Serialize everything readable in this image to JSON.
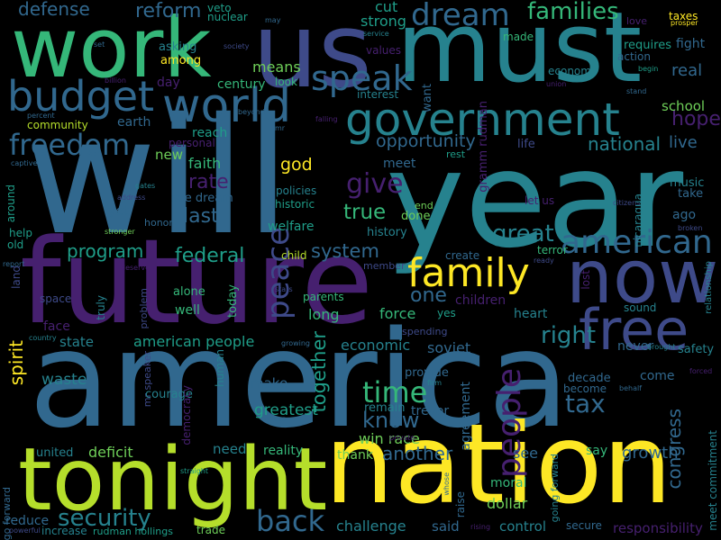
{
  "palette": {
    "background": "#000000",
    "purple": "#46206f",
    "indigo": "#3e4a89",
    "blue": "#31688e",
    "teal": "#26828e",
    "green": "#1f9e89",
    "lightgreen": "#35b779",
    "lime": "#6ece58",
    "yellowgreen": "#b5de2b",
    "yellow": "#fde725"
  },
  "words": [
    {
      "text": "america",
      "color": "blue"
    },
    {
      "text": "will",
      "color": "blue"
    },
    {
      "text": "year",
      "color": "teal"
    },
    {
      "text": "future",
      "color": "purple"
    },
    {
      "text": "nation",
      "color": "yellow"
    },
    {
      "text": "must",
      "color": "teal"
    },
    {
      "text": "us",
      "color": "indigo"
    },
    {
      "text": "work",
      "color": "lightgreen"
    },
    {
      "text": "tonight",
      "color": "yellowgreen"
    },
    {
      "text": "now",
      "color": "indigo"
    },
    {
      "text": "free",
      "color": "indigo"
    },
    {
      "text": "government",
      "color": "teal"
    },
    {
      "text": "world",
      "color": "blue"
    },
    {
      "text": "budget",
      "color": "blue"
    },
    {
      "text": "family",
      "color": "yellow"
    },
    {
      "text": "american",
      "color": "blue"
    },
    {
      "text": "peace",
      "color": "indigo"
    },
    {
      "text": "people",
      "color": "purple"
    },
    {
      "text": "freedom",
      "color": "blue"
    },
    {
      "text": "speak",
      "color": "blue"
    },
    {
      "text": "dream",
      "color": "blue"
    },
    {
      "text": "families",
      "color": "lightgreen"
    },
    {
      "text": "reform",
      "color": "blue"
    },
    {
      "text": "defense",
      "color": "blue"
    },
    {
      "text": "veto",
      "color": "green"
    },
    {
      "text": "nuclear",
      "color": "green"
    },
    {
      "text": "strong",
      "color": "green"
    },
    {
      "text": "cut",
      "color": "green"
    },
    {
      "text": "gramm rudman",
      "color": "purple"
    },
    {
      "text": "taxes",
      "color": "yellow"
    },
    {
      "text": "prosper",
      "color": "yellow"
    },
    {
      "text": "made",
      "color": "lightgreen"
    },
    {
      "text": "fight",
      "color": "blue"
    },
    {
      "text": "requires",
      "color": "green"
    },
    {
      "text": "action",
      "color": "blue"
    },
    {
      "text": "love",
      "color": "purple"
    },
    {
      "text": "asking",
      "color": "teal"
    },
    {
      "text": "among",
      "color": "yellow"
    },
    {
      "text": "may",
      "color": "blue"
    },
    {
      "text": "set",
      "color": "blue"
    },
    {
      "text": "society",
      "color": "indigo"
    },
    {
      "text": "service",
      "color": "teal"
    },
    {
      "text": "values",
      "color": "purple"
    },
    {
      "text": "economy",
      "color": "teal"
    },
    {
      "text": "begin",
      "color": "green"
    },
    {
      "text": "real",
      "color": "blue"
    },
    {
      "text": "union",
      "color": "purple"
    },
    {
      "text": "want",
      "color": "blue"
    },
    {
      "text": "interest",
      "color": "teal"
    },
    {
      "text": "look",
      "color": "lightgreen"
    },
    {
      "text": "means",
      "color": "lime"
    },
    {
      "text": "century",
      "color": "lightgreen"
    },
    {
      "text": "day",
      "color": "purple"
    },
    {
      "text": "billion",
      "color": "purple"
    },
    {
      "text": "stand",
      "color": "blue"
    },
    {
      "text": "hope",
      "color": "purple"
    },
    {
      "text": "school",
      "color": "lime"
    },
    {
      "text": "live",
      "color": "blue"
    },
    {
      "text": "national",
      "color": "teal"
    },
    {
      "text": "opportunity",
      "color": "blue"
    },
    {
      "text": "life",
      "color": "indigo"
    },
    {
      "text": "rest",
      "color": "green"
    },
    {
      "text": "beyond",
      "color": "blue"
    },
    {
      "text": "falling",
      "color": "purple"
    },
    {
      "text": "percent",
      "color": "blue"
    },
    {
      "text": "community",
      "color": "yellowgreen"
    },
    {
      "text": "earth",
      "color": "blue"
    },
    {
      "text": "reach",
      "color": "green"
    },
    {
      "text": "personal",
      "color": "purple"
    },
    {
      "text": "mr",
      "color": "blue"
    },
    {
      "text": "new",
      "color": "lime"
    },
    {
      "text": "faith",
      "color": "lightgreen"
    },
    {
      "text": "god",
      "color": "yellow"
    },
    {
      "text": "meet",
      "color": "blue"
    },
    {
      "text": "give",
      "color": "purple"
    },
    {
      "text": "rate",
      "color": "purple"
    },
    {
      "text": "music",
      "color": "teal"
    },
    {
      "text": "take",
      "color": "blue"
    },
    {
      "text": "captive",
      "color": "blue"
    },
    {
      "text": "gates",
      "color": "teal"
    },
    {
      "text": "address",
      "color": "indigo"
    },
    {
      "text": "see dream",
      "color": "blue"
    },
    {
      "text": "policies",
      "color": "teal"
    },
    {
      "text": "historic",
      "color": "green"
    },
    {
      "text": "end",
      "color": "lime"
    },
    {
      "text": "let us",
      "color": "purple"
    },
    {
      "text": "citizens",
      "color": "indigo"
    },
    {
      "text": "ago",
      "color": "blue"
    },
    {
      "text": "around",
      "color": "green"
    },
    {
      "text": "yet",
      "color": "blue"
    },
    {
      "text": "last",
      "color": "blue"
    },
    {
      "text": "true",
      "color": "lightgreen"
    },
    {
      "text": "done",
      "color": "lime"
    },
    {
      "text": "nicaragua",
      "color": "teal"
    },
    {
      "text": "broken",
      "color": "indigo"
    },
    {
      "text": "help",
      "color": "green"
    },
    {
      "text": "honor",
      "color": "blue"
    },
    {
      "text": "stronger",
      "color": "lime"
    },
    {
      "text": "welfare",
      "color": "green"
    },
    {
      "text": "history",
      "color": "teal"
    },
    {
      "text": "great",
      "color": "teal"
    },
    {
      "text": "old",
      "color": "green"
    },
    {
      "text": "program",
      "color": "green"
    },
    {
      "text": "federal",
      "color": "green"
    },
    {
      "text": "child",
      "color": "yellowgreen"
    },
    {
      "text": "system",
      "color": "blue"
    },
    {
      "text": "terror",
      "color": "lightgreen"
    },
    {
      "text": "create",
      "color": "blue"
    },
    {
      "text": "ready",
      "color": "indigo"
    },
    {
      "text": "report",
      "color": "blue"
    },
    {
      "text": "deserve",
      "color": "purple"
    },
    {
      "text": "member",
      "color": "indigo"
    },
    {
      "text": "land",
      "color": "indigo"
    },
    {
      "text": "space",
      "color": "indigo"
    },
    {
      "text": "truly",
      "color": "teal"
    },
    {
      "text": "alone",
      "color": "lightgreen"
    },
    {
      "text": "today",
      "color": "lightgreen"
    },
    {
      "text": "stars",
      "color": "indigo"
    },
    {
      "text": "parents",
      "color": "lightgreen"
    },
    {
      "text": "one",
      "color": "blue"
    },
    {
      "text": "children",
      "color": "purple"
    },
    {
      "text": "lost",
      "color": "purple"
    },
    {
      "text": "relationship",
      "color": "teal"
    },
    {
      "text": "sound",
      "color": "teal"
    },
    {
      "text": "well",
      "color": "lightgreen"
    },
    {
      "text": "problem",
      "color": "indigo"
    },
    {
      "text": "long",
      "color": "lightgreen"
    },
    {
      "text": "force",
      "color": "lightgreen"
    },
    {
      "text": "yes",
      "color": "green"
    },
    {
      "text": "heart",
      "color": "teal"
    },
    {
      "text": "face",
      "color": "purple"
    },
    {
      "text": "spirit",
      "color": "yellow"
    },
    {
      "text": "state",
      "color": "teal"
    },
    {
      "text": "american people",
      "color": "green"
    },
    {
      "text": "economic",
      "color": "teal"
    },
    {
      "text": "spending",
      "color": "indigo"
    },
    {
      "text": "right",
      "color": "teal"
    },
    {
      "text": "soviet",
      "color": "blue"
    },
    {
      "text": "never",
      "color": "blue"
    },
    {
      "text": "brought",
      "color": "teal"
    },
    {
      "text": "safety",
      "color": "teal"
    },
    {
      "text": "country",
      "color": "teal"
    },
    {
      "text": "growing",
      "color": "blue"
    },
    {
      "text": "waste",
      "color": "teal"
    },
    {
      "text": "mr speaker",
      "color": "indigo"
    },
    {
      "text": "courage",
      "color": "teal"
    },
    {
      "text": "democracy",
      "color": "purple"
    },
    {
      "text": "human",
      "color": "teal"
    },
    {
      "text": "make",
      "color": "blue"
    },
    {
      "text": "greatest",
      "color": "green"
    },
    {
      "text": "prices",
      "color": "blue"
    },
    {
      "text": "together",
      "color": "green"
    },
    {
      "text": "remain",
      "color": "teal"
    },
    {
      "text": "trevor",
      "color": "blue"
    },
    {
      "text": "provide",
      "color": "blue"
    },
    {
      "text": "firm",
      "color": "teal"
    },
    {
      "text": "time",
      "color": "lightgreen"
    },
    {
      "text": "know",
      "color": "blue"
    },
    {
      "text": "tax",
      "color": "blue"
    },
    {
      "text": "decade",
      "color": "blue"
    },
    {
      "text": "become",
      "color": "blue"
    },
    {
      "text": "behalf",
      "color": "blue"
    },
    {
      "text": "come",
      "color": "blue"
    },
    {
      "text": "forced",
      "color": "purple"
    },
    {
      "text": "congress",
      "color": "blue"
    },
    {
      "text": "meet commitment",
      "color": "teal"
    },
    {
      "text": "win race",
      "color": "lime"
    },
    {
      "text": "agreement",
      "color": "blue"
    },
    {
      "text": "another",
      "color": "blue"
    },
    {
      "text": "private",
      "color": "purple"
    },
    {
      "text": "united",
      "color": "teal"
    },
    {
      "text": "deficit",
      "color": "lime"
    },
    {
      "text": "straight",
      "color": "green"
    },
    {
      "text": "need",
      "color": "teal"
    },
    {
      "text": "reality",
      "color": "lightgreen"
    },
    {
      "text": "thank",
      "color": "lime"
    },
    {
      "text": "see",
      "color": "blue"
    },
    {
      "text": "say",
      "color": "lightgreen"
    },
    {
      "text": "growth",
      "color": "blue"
    },
    {
      "text": "go forward",
      "color": "blue"
    },
    {
      "text": "whose",
      "color": "blue"
    },
    {
      "text": "raise",
      "color": "blue"
    },
    {
      "text": "moral",
      "color": "lightgreen"
    },
    {
      "text": "going forward",
      "color": "teal"
    },
    {
      "text": "reduce",
      "color": "blue"
    },
    {
      "text": "security",
      "color": "teal"
    },
    {
      "text": "back",
      "color": "blue"
    },
    {
      "text": "challenge",
      "color": "teal"
    },
    {
      "text": "dollar",
      "color": "lime"
    },
    {
      "text": "said",
      "color": "blue"
    },
    {
      "text": "control",
      "color": "teal"
    },
    {
      "text": "rising",
      "color": "purple"
    },
    {
      "text": "secure",
      "color": "blue"
    },
    {
      "text": "responsibility",
      "color": "purple"
    },
    {
      "text": "powerful",
      "color": "indigo"
    },
    {
      "text": "increase",
      "color": "teal"
    },
    {
      "text": "rudman hollings",
      "color": "green"
    },
    {
      "text": "trade",
      "color": "lime"
    }
  ]
}
